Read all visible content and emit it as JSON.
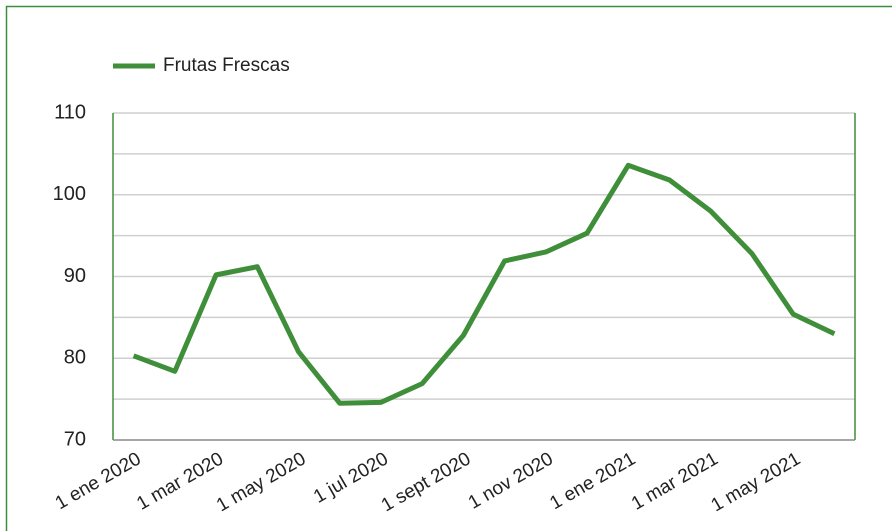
{
  "chart_data": {
    "type": "line",
    "categories": [
      "1 ene 2020",
      null,
      "1 mar 2020",
      null,
      "1 may 2020",
      null,
      "1 jul 2020",
      null,
      "1 sept 2020",
      null,
      "1 nov 2020",
      null,
      "1 ene 2021",
      null,
      "1 mar 2021",
      null,
      "1 may 2021",
      null
    ],
    "series": [
      {
        "name": "Frutas Frescas",
        "color": "#3f8f3a",
        "values": [
          80.3,
          78.4,
          90.2,
          91.2,
          80.8,
          74.5,
          74.6,
          76.9,
          82.8,
          91.9,
          93,
          95.3,
          103.6,
          101.8,
          98,
          92.8,
          85.4,
          83
        ]
      }
    ],
    "ylim": [
      70,
      110
    ],
    "yticks": [
      70,
      80,
      90,
      100,
      110
    ],
    "yminor": [
      75,
      85,
      95,
      105
    ],
    "grid": true,
    "legend": "top-left"
  }
}
